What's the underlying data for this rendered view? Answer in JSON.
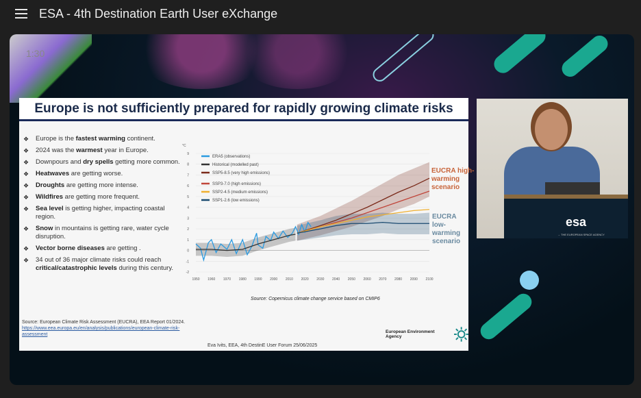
{
  "app": {
    "title": "ESA - 4th Destination Earth User eXchange",
    "timecode": "1:30"
  },
  "slide": {
    "title": "Europe is not sufficiently prepared for rapidly growing climate risks",
    "bullets": [
      {
        "pre": "Europe is the ",
        "bold": "fastest warming",
        "post": " continent."
      },
      {
        "pre": "2024 was the ",
        "bold": "warmest",
        "post": " year in Europe."
      },
      {
        "pre": "Downpours and ",
        "bold": "dry spells",
        "post": " getting more common."
      },
      {
        "pre": "",
        "bold": "Heatwaves",
        "post": " are getting worse."
      },
      {
        "pre": "",
        "bold": "Droughts",
        "post": " are getting more intense."
      },
      {
        "pre": "",
        "bold": "Wildfires",
        "post": " are getting more frequent."
      },
      {
        "pre": "",
        "bold": "Sea level",
        "post": " is getting higher, impacting coastal region."
      },
      {
        "pre": "",
        "bold": "Snow",
        "post": " in mountains is getting rare, water cycle disruption."
      },
      {
        "pre": "",
        "bold": "Vector borne diseases",
        "post": " are getting ."
      },
      {
        "pre": "34 out of 36 major climate risks could reach ",
        "bold": "critical/catastrophic levels",
        "post": " during this century."
      }
    ],
    "source": "Source: European Climate Risk Assessment (EUCRA), EEA Report 01/2024.",
    "source_link": "https://www.eea.europa.eu/en/analysis/publications/european-climate-risk-assessment",
    "footer": "Eva Ivits, EEA, 4th DestinE User Forum 25/06/2025",
    "agency": "European Environment Agency",
    "chart_source": "Source: Copernicus climate change service based on CMIP6",
    "annotation_high": "EUCRA high-warming scenario",
    "annotation_low": "EUCRA low-warming scenario"
  },
  "speaker_panel": {
    "logo": "esa",
    "logo_sub": "→ THE EUROPEAN SPACE AGENCY"
  },
  "chart_data": {
    "type": "line",
    "ylabel": "°C",
    "xlim": [
      1950,
      2100
    ],
    "ylim": [
      -2,
      9
    ],
    "xticks": [
      "1950",
      "1960",
      "1970",
      "1980",
      "1990",
      "2000",
      "2010",
      "2020",
      "2030",
      "2040",
      "2050",
      "2060",
      "2070",
      "2080",
      "2090",
      "2100"
    ],
    "yticks": [
      "-2",
      "-1",
      "0",
      "1",
      "2",
      "3",
      "4",
      "5",
      "6",
      "7",
      "8",
      "9"
    ],
    "grid": true,
    "legend": "top-left",
    "series": [
      {
        "name": "ERA5 (observations)",
        "color": "#2a9ae0",
        "x": [
          1950,
          1953,
          1955,
          1958,
          1960,
          1963,
          1966,
          1970,
          1973,
          1976,
          1980,
          1983,
          1986,
          1989,
          1990,
          1993,
          1995,
          1998,
          2000,
          2003,
          2006,
          2009,
          2012,
          2014,
          2016,
          2018,
          2020,
          2022,
          2024
        ],
        "y": [
          0.6,
          0.2,
          -0.9,
          0.7,
          1.0,
          -0.2,
          0.6,
          0.1,
          1.0,
          -0.3,
          1.0,
          -0.4,
          0.4,
          1.6,
          0.5,
          0.2,
          1.3,
          0.9,
          1.7,
          1.1,
          1.8,
          1.2,
          1.6,
          2.2,
          1.5,
          2.4,
          1.7,
          2.6,
          2.2
        ]
      },
      {
        "name": "Historical (modelled past)",
        "color": "#333333",
        "x": [
          1950,
          1960,
          1970,
          1980,
          1990,
          2000,
          2010,
          2014
        ],
        "y": [
          0.1,
          0.1,
          0.0,
          0.1,
          0.6,
          1.0,
          1.4,
          1.5
        ],
        "band": [
          [
            -0.5,
            0.7
          ],
          [
            -0.5,
            0.7
          ],
          [
            -0.6,
            0.6
          ],
          [
            -0.5,
            0.7
          ],
          [
            0,
            1.2
          ],
          [
            0.4,
            1.6
          ],
          [
            0.8,
            2.0
          ],
          [
            0.9,
            2.1
          ]
        ]
      },
      {
        "name": "SSP5-8.5 (very high emissions)",
        "color": "#7a2a1a",
        "x": [
          2015,
          2030,
          2040,
          2050,
          2060,
          2070,
          2080,
          2090,
          2100
        ],
        "y": [
          1.6,
          2.3,
          2.8,
          3.4,
          4.0,
          4.7,
          5.4,
          6.0,
          6.7
        ],
        "band": [
          [
            0.9,
            2.4
          ],
          [
            1.4,
            3.2
          ],
          [
            1.8,
            3.9
          ],
          [
            2.2,
            4.6
          ],
          [
            2.7,
            5.4
          ],
          [
            3.2,
            6.2
          ],
          [
            3.8,
            7.0
          ],
          [
            4.3,
            7.6
          ],
          [
            5.0,
            8.2
          ]
        ]
      },
      {
        "name": "SSP3-7.0 (high emissions)",
        "color": "#c0453a",
        "x": [
          2015,
          2030,
          2040,
          2050,
          2060,
          2070,
          2080,
          2090,
          2100
        ],
        "y": [
          1.6,
          2.2,
          2.6,
          3.0,
          3.5,
          4.0,
          4.5,
          5.0,
          5.5
        ]
      },
      {
        "name": "SSP2-4.5 (medium emissions)",
        "color": "#f0b030",
        "x": [
          2015,
          2030,
          2040,
          2050,
          2060,
          2070,
          2080,
          2090,
          2100
        ],
        "y": [
          1.6,
          2.2,
          2.5,
          2.8,
          3.1,
          3.3,
          3.5,
          3.7,
          3.8
        ]
      },
      {
        "name": "SSP1-2.6 (low emissions)",
        "color": "#1a4a70",
        "x": [
          2015,
          2030,
          2040,
          2050,
          2060,
          2070,
          2080,
          2090,
          2100
        ],
        "y": [
          1.6,
          2.0,
          2.3,
          2.5,
          2.5,
          2.6,
          2.5,
          2.5,
          2.5
        ],
        "band": [
          [
            0.9,
            2.3
          ],
          [
            1.2,
            2.8
          ],
          [
            1.4,
            3.2
          ],
          [
            1.5,
            3.4
          ],
          [
            1.5,
            3.4
          ],
          [
            1.6,
            3.5
          ],
          [
            1.5,
            3.4
          ],
          [
            1.5,
            3.4
          ],
          [
            1.5,
            3.5
          ]
        ]
      }
    ]
  }
}
